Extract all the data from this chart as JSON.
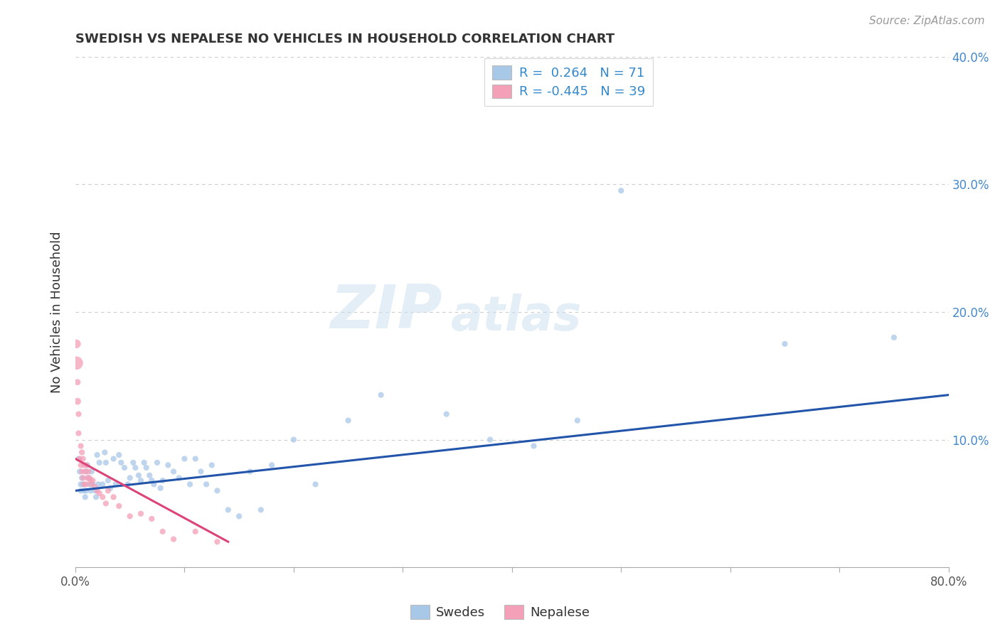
{
  "title": "SWEDISH VS NEPALESE NO VEHICLES IN HOUSEHOLD CORRELATION CHART",
  "source": "Source: ZipAtlas.com",
  "ylabel": "No Vehicles in Household",
  "xlim": [
    0,
    0.8
  ],
  "ylim": [
    0,
    0.4
  ],
  "xticks": [
    0.0,
    0.1,
    0.2,
    0.3,
    0.4,
    0.5,
    0.6,
    0.7,
    0.8
  ],
  "xticklabels": [
    "0.0%",
    "",
    "",
    "",
    "",
    "",
    "",
    "",
    "80.0%"
  ],
  "yticks": [
    0.0,
    0.1,
    0.2,
    0.3,
    0.4
  ],
  "yticklabels": [
    "",
    "10.0%",
    "20.0%",
    "30.0%",
    "40.0%"
  ],
  "grid_color": "#cccccc",
  "background_color": "#ffffff",
  "swedes_color": "#a8c8e8",
  "nepalese_color": "#f4a0b8",
  "swedes_line_color": "#2255aa",
  "nepalese_line_color": "#dd4477",
  "R_swedes": 0.264,
  "N_swedes": 71,
  "R_nepalese": -0.445,
  "N_nepalese": 39,
  "watermark_zip": "ZIP",
  "watermark_atlas": "atlas",
  "legend_swedes": "Swedes",
  "legend_nepalese": "Nepalese",
  "swedes_line_x0": 0.0,
  "swedes_line_y0": 0.06,
  "swedes_line_x1": 0.8,
  "swedes_line_y1": 0.135,
  "nepalese_line_x0": 0.0,
  "nepalese_line_y0": 0.085,
  "nepalese_line_x1": 0.14,
  "nepalese_line_y1": 0.02,
  "swedes_x": [
    0.003,
    0.004,
    0.005,
    0.005,
    0.006,
    0.007,
    0.008,
    0.009,
    0.01,
    0.01,
    0.011,
    0.012,
    0.013,
    0.014,
    0.015,
    0.016,
    0.018,
    0.019,
    0.02,
    0.021,
    0.022,
    0.025,
    0.027,
    0.028,
    0.03,
    0.032,
    0.035,
    0.037,
    0.04,
    0.042,
    0.045,
    0.048,
    0.05,
    0.053,
    0.055,
    0.058,
    0.06,
    0.063,
    0.065,
    0.068,
    0.07,
    0.072,
    0.075,
    0.078,
    0.08,
    0.085,
    0.09,
    0.095,
    0.1,
    0.105,
    0.11,
    0.115,
    0.12,
    0.125,
    0.13,
    0.14,
    0.15,
    0.16,
    0.17,
    0.18,
    0.2,
    0.22,
    0.25,
    0.28,
    0.34,
    0.38,
    0.42,
    0.46,
    0.5,
    0.65,
    0.75
  ],
  "swedes_y": [
    0.085,
    0.075,
    0.065,
    0.06,
    0.07,
    0.065,
    0.06,
    0.055,
    0.075,
    0.06,
    0.08,
    0.07,
    0.065,
    0.06,
    0.075,
    0.065,
    0.06,
    0.055,
    0.088,
    0.065,
    0.082,
    0.065,
    0.09,
    0.082,
    0.068,
    0.062,
    0.085,
    0.065,
    0.088,
    0.082,
    0.078,
    0.065,
    0.07,
    0.082,
    0.078,
    0.072,
    0.068,
    0.082,
    0.078,
    0.072,
    0.068,
    0.065,
    0.082,
    0.062,
    0.068,
    0.08,
    0.075,
    0.07,
    0.085,
    0.065,
    0.085,
    0.075,
    0.065,
    0.08,
    0.06,
    0.045,
    0.04,
    0.075,
    0.045,
    0.08,
    0.1,
    0.065,
    0.115,
    0.135,
    0.12,
    0.1,
    0.095,
    0.115,
    0.295,
    0.175,
    0.18
  ],
  "nepalese_x": [
    0.001,
    0.001,
    0.002,
    0.002,
    0.003,
    0.003,
    0.004,
    0.005,
    0.005,
    0.006,
    0.006,
    0.007,
    0.007,
    0.008,
    0.008,
    0.009,
    0.01,
    0.01,
    0.011,
    0.012,
    0.013,
    0.014,
    0.015,
    0.016,
    0.018,
    0.02,
    0.022,
    0.025,
    0.028,
    0.03,
    0.035,
    0.04,
    0.05,
    0.06,
    0.07,
    0.08,
    0.09,
    0.11,
    0.13
  ],
  "nepalese_y": [
    0.16,
    0.175,
    0.13,
    0.145,
    0.105,
    0.12,
    0.085,
    0.095,
    0.08,
    0.09,
    0.075,
    0.085,
    0.07,
    0.08,
    0.065,
    0.075,
    0.08,
    0.065,
    0.07,
    0.075,
    0.07,
    0.068,
    0.065,
    0.068,
    0.063,
    0.06,
    0.058,
    0.055,
    0.05,
    0.06,
    0.055,
    0.048,
    0.04,
    0.042,
    0.038,
    0.028,
    0.022,
    0.028,
    0.02
  ],
  "nepalese_sizes": [
    180,
    80,
    50,
    40,
    35,
    35,
    35,
    35,
    35,
    35,
    35,
    35,
    35,
    35,
    35,
    35,
    35,
    35,
    35,
    35,
    35,
    35,
    35,
    35,
    35,
    35,
    35,
    35,
    35,
    35,
    35,
    35,
    35,
    35,
    35,
    35,
    35,
    35,
    35
  ],
  "point_size": 35
}
